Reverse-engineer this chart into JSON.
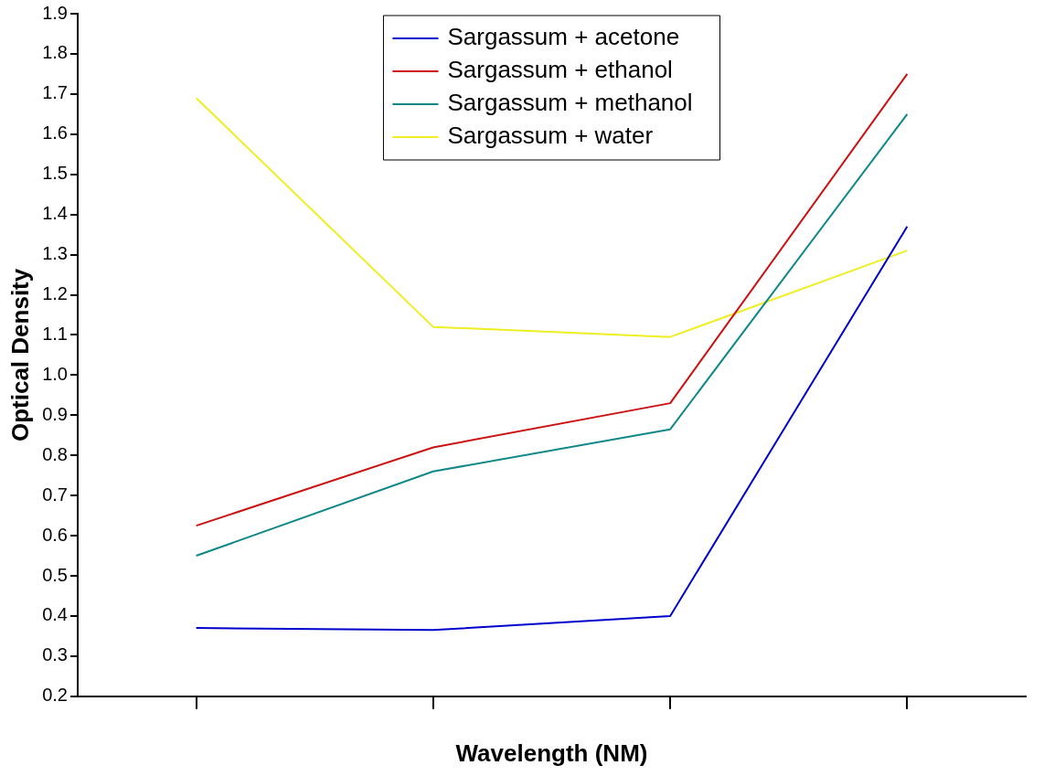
{
  "chart_data": {
    "type": "line",
    "xlabel": "Wavelength (NM)",
    "ylabel": "Optical Density",
    "categories": [
      null,
      null,
      null,
      null
    ],
    "ylim": [
      0.2,
      1.9
    ],
    "yticks": [
      0.2,
      0.3,
      0.4,
      0.5,
      0.6,
      0.7,
      0.8,
      0.9,
      {
        "value": 1,
        "label": "1.0"
      },
      1.1,
      1.2,
      1.3,
      1.4,
      1.5,
      1.6,
      1.7,
      1.8,
      1.9
    ],
    "grid": false,
    "legend": "top",
    "marker": "none",
    "line_style": "solid",
    "series": [
      {
        "name": "Sargassum + acetone",
        "color": "#0000cc",
        "values": [
          0.37,
          0.365,
          0.4,
          1.37
        ]
      },
      {
        "name": "Sargassum + ethanol",
        "color": "#cc1111",
        "values": [
          0.625,
          0.82,
          0.93,
          1.75
        ]
      },
      {
        "name": "Sargassum + methanol",
        "color": "#118888",
        "values": [
          0.55,
          0.76,
          0.865,
          1.65
        ]
      },
      {
        "name": "Sargassum + water",
        "color": "#eeee22",
        "values": [
          1.69,
          1.12,
          1.095,
          1.31
        ]
      }
    ]
  }
}
